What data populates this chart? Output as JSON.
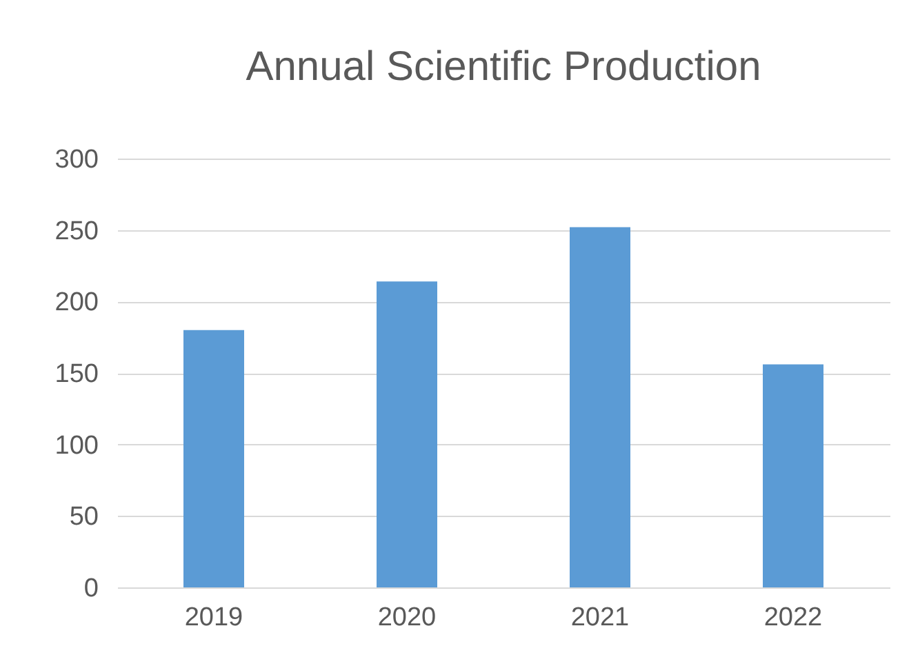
{
  "chart_data": {
    "type": "bar",
    "title": "Annual Scientific Production",
    "categories": [
      "2019",
      "2020",
      "2021",
      "2022"
    ],
    "values": [
      180,
      214,
      252,
      156
    ],
    "color": "#5b9bd5",
    "ylim": [
      0,
      300
    ],
    "yticks": [
      0,
      50,
      100,
      150,
      200,
      250,
      300
    ],
    "grid": "y"
  }
}
